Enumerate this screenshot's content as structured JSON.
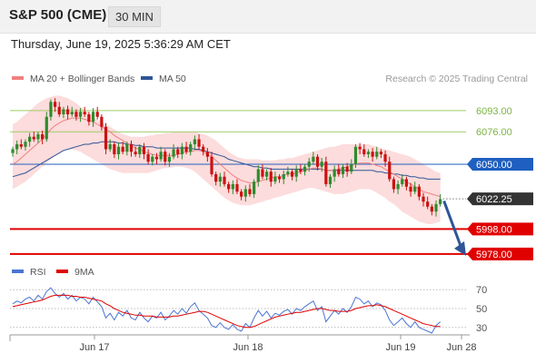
{
  "header": {
    "title": "S&P 500 (CME)",
    "timeframe": "30 MIN",
    "datetime": "Thursday, June 19, 2025 5:36:29 AM CET"
  },
  "legend": {
    "ma20_bollinger": "MA 20 + Bollinger Bands",
    "ma50": "MA 50",
    "attribution": "Research © 2025 Trading Central",
    "rsi": "RSI",
    "rsi_ma": "9MA"
  },
  "colors": {
    "up": "#2e8b2e",
    "down": "#cc1111",
    "ma20": "#f08080",
    "band_fill": "#fbd0d0",
    "ma50": "#2f5597",
    "resistance": "#9ccc65",
    "pivot": "#1f5fbf",
    "support": "#e00000",
    "current": "#333333",
    "arrow": "#2f5597",
    "rsi": "#4a74d4",
    "rsi_ma": "#e00000"
  },
  "chart_data": [
    {
      "type": "candlestick",
      "title": "S&P 500 (CME)",
      "x_labels": [
        "Jun 17",
        "Jun 18",
        "Jun 19",
        "Jun 28"
      ],
      "ylim": [
        5975,
        6106
      ],
      "levels": [
        {
          "label": "6093.00",
          "value": 6093,
          "kind": "resistance"
        },
        {
          "label": "6076.00",
          "value": 6076,
          "kind": "resistance"
        },
        {
          "label": "6050.00",
          "value": 6050,
          "kind": "pivot"
        },
        {
          "label": "6022.25",
          "value": 6022.25,
          "kind": "current"
        },
        {
          "label": "5998.00",
          "value": 5998,
          "kind": "support"
        },
        {
          "label": "5978.00",
          "value": 5978,
          "kind": "support"
        }
      ],
      "close": [
        6062,
        6066,
        6064,
        6068,
        6072,
        6070,
        6074,
        6070,
        6088,
        6100,
        6096,
        6090,
        6094,
        6090,
        6092,
        6088,
        6092,
        6090,
        6084,
        6092,
        6088,
        6080,
        6062,
        6066,
        6058,
        6064,
        6060,
        6066,
        6060,
        6058,
        6064,
        6058,
        6052,
        6056,
        6054,
        6060,
        6052,
        6056,
        6062,
        6058,
        6064,
        6060,
        6066,
        6070,
        6064,
        6060,
        6056,
        6042,
        6036,
        6040,
        6034,
        6030,
        6034,
        6028,
        6024,
        6030,
        6026,
        6036,
        6046,
        6040,
        6044,
        6036,
        6040,
        6038,
        6042,
        6044,
        6040,
        6046,
        6044,
        6048,
        6052,
        6056,
        6048,
        6052,
        6034,
        6040,
        6046,
        6042,
        6048,
        6044,
        6050,
        6064,
        6062,
        6058,
        6060,
        6056,
        6060,
        6058,
        6052,
        6038,
        6030,
        6034,
        6038,
        6032,
        6028,
        6032,
        6024,
        6020,
        6016,
        6012,
        6018,
        6022
      ],
      "ma20": [
        6050,
        6052,
        6055,
        6058,
        6061,
        6064,
        6067,
        6070,
        6074,
        6078,
        6081,
        6083,
        6085,
        6086,
        6087,
        6087,
        6087,
        6086,
        6085,
        6084,
        6082,
        6080,
        6078,
        6076,
        6073,
        6071,
        6069,
        6067,
        6065,
        6063,
        6062,
        6060,
        6059,
        6058,
        6057,
        6057,
        6057,
        6057,
        6057,
        6058,
        6059,
        6060,
        6060,
        6061,
        6061,
        6060,
        6058,
        6056,
        6053,
        6050,
        6047,
        6044,
        6041,
        6039,
        6037,
        6036,
        6035,
        6035,
        6036,
        6037,
        6038,
        6039,
        6040,
        6040,
        6041,
        6042,
        6042,
        6043,
        6044,
        6045,
        6046,
        6047,
        6047,
        6046,
        6045,
        6045,
        6045,
        6046,
        6047,
        6048,
        6049,
        6050,
        6051,
        6051,
        6051,
        6050,
        6049,
        6048,
        6046,
        6044,
        6042,
        6040,
        6038,
        6036,
        6034,
        6032,
        6030,
        6028,
        6027,
        6026,
        6025,
        6024
      ],
      "band_upper": [
        6082,
        6084,
        6087,
        6090,
        6093,
        6096,
        6099,
        6101,
        6103,
        6104,
        6105,
        6105,
        6104,
        6103,
        6101,
        6099,
        6096,
        6094,
        6091,
        6088,
        6086,
        6084,
        6082,
        6080,
        6078,
        6076,
        6074,
        6073,
        6072,
        6072,
        6072,
        6072,
        6073,
        6073,
        6074,
        6074,
        6075,
        6075,
        6076,
        6076,
        6076,
        6076,
        6076,
        6076,
        6075,
        6074,
        6073,
        6071,
        6069,
        6066,
        6063,
        6060,
        6058,
        6056,
        6055,
        6054,
        6054,
        6054,
        6054,
        6053,
        6053,
        6053,
        6053,
        6054,
        6054,
        6055,
        6055,
        6056,
        6057,
        6058,
        6059,
        6060,
        6061,
        6062,
        6063,
        6064,
        6064,
        6065,
        6066,
        6066,
        6066,
        6066,
        6066,
        6066,
        6066,
        6065,
        6064,
        6063,
        6062,
        6061,
        6060,
        6059,
        6058,
        6057,
        6056,
        6054,
        6052,
        6050,
        6048,
        6046,
        6044,
        6043
      ],
      "band_lower": [
        6030,
        6032,
        6034,
        6036,
        6039,
        6042,
        6045,
        6048,
        6051,
        6054,
        6057,
        6059,
        6061,
        6062,
        6062,
        6061,
        6060,
        6058,
        6056,
        6054,
        6052,
        6050,
        6048,
        6046,
        6045,
        6044,
        6043,
        6043,
        6043,
        6043,
        6043,
        6043,
        6043,
        6044,
        6045,
        6046,
        6047,
        6047,
        6048,
        6048,
        6048,
        6047,
        6046,
        6044,
        6041,
        6038,
        6035,
        6032,
        6029,
        6026,
        6023,
        6021,
        6019,
        6018,
        6017,
        6017,
        6017,
        6018,
        6019,
        6020,
        6021,
        6022,
        6023,
        6024,
        6025,
        6026,
        6027,
        6028,
        6029,
        6030,
        6031,
        6031,
        6030,
        6029,
        6028,
        6027,
        6026,
        6026,
        6026,
        6027,
        6028,
        6029,
        6030,
        6030,
        6030,
        6029,
        6027,
        6025,
        6023,
        6020,
        6018,
        6015,
        6012,
        6010,
        6008,
        6006,
        6004,
        6003,
        6002,
        6002,
        6003,
        6004
      ],
      "ma50": [
        6040,
        6041,
        6042,
        6043,
        6045,
        6047,
        6049,
        6051,
        6053,
        6055,
        6057,
        6059,
        6061,
        6062,
        6063,
        6064,
        6065,
        6066,
        6066,
        6067,
        6067,
        6068,
        6068,
        6068,
        6068,
        6067,
        6067,
        6066,
        6066,
        6065,
        6065,
        6064,
        6064,
        6064,
        6063,
        6063,
        6063,
        6063,
        6063,
        6063,
        6063,
        6063,
        6063,
        6062,
        6062,
        6061,
        6060,
        6059,
        6058,
        6057,
        6056,
        6054,
        6053,
        6052,
        6051,
        6050,
        6049,
        6048,
        6048,
        6047,
        6047,
        6046,
        6046,
        6046,
        6046,
        6046,
        6046,
        6046,
        6046,
        6046,
        6046,
        6046,
        6046,
        6046,
        6045,
        6045,
        6045,
        6045,
        6045,
        6045,
        6045,
        6045,
        6045,
        6045,
        6045,
        6045,
        6044,
        6044,
        6043,
        6043,
        6042,
        6042,
        6041,
        6041,
        6040,
        6040,
        6039,
        6039,
        6038,
        6038,
        6038,
        6038
      ]
    },
    {
      "type": "line",
      "title": "RSI",
      "ylim": [
        25,
        75
      ],
      "y_ticks": [
        70,
        50,
        30
      ],
      "series": [
        {
          "name": "RSI",
          "values": [
            55,
            58,
            56,
            60,
            62,
            58,
            64,
            60,
            68,
            72,
            66,
            62,
            66,
            60,
            64,
            58,
            62,
            60,
            55,
            62,
            57,
            52,
            40,
            45,
            38,
            46,
            42,
            48,
            40,
            38,
            46,
            40,
            36,
            42,
            40,
            46,
            38,
            42,
            48,
            44,
            50,
            45,
            52,
            56,
            48,
            44,
            40,
            32,
            30,
            35,
            30,
            28,
            33,
            28,
            26,
            34,
            30,
            40,
            48,
            42,
            47,
            40,
            45,
            43,
            47,
            49,
            44,
            50,
            48,
            52,
            55,
            58,
            48,
            52,
            36,
            42,
            48,
            44,
            50,
            46,
            52,
            62,
            60,
            55,
            58,
            52,
            56,
            54,
            48,
            38,
            32,
            36,
            40,
            34,
            30,
            36,
            30,
            28,
            26,
            24,
            32,
            36
          ]
        },
        {
          "name": "9MA",
          "values": [
            52,
            53,
            54,
            55,
            56,
            57,
            58,
            59,
            61,
            63,
            64,
            64,
            64,
            64,
            63,
            63,
            62,
            62,
            61,
            60,
            59,
            58,
            55,
            53,
            50,
            48,
            46,
            45,
            44,
            43,
            43,
            42,
            42,
            42,
            41,
            41,
            41,
            41,
            42,
            42,
            43,
            44,
            45,
            46,
            47,
            47,
            46,
            44,
            42,
            40,
            38,
            36,
            34,
            32,
            31,
            30,
            30,
            31,
            33,
            35,
            37,
            39,
            41,
            42,
            43,
            44,
            45,
            46,
            46,
            47,
            48,
            49,
            50,
            50,
            49,
            48,
            48,
            47,
            47,
            47,
            48,
            50,
            51,
            52,
            53,
            53,
            54,
            53,
            52,
            50,
            48,
            46,
            44,
            42,
            40,
            38,
            36,
            34,
            33,
            32,
            31,
            31
          ]
        }
      ]
    }
  ]
}
